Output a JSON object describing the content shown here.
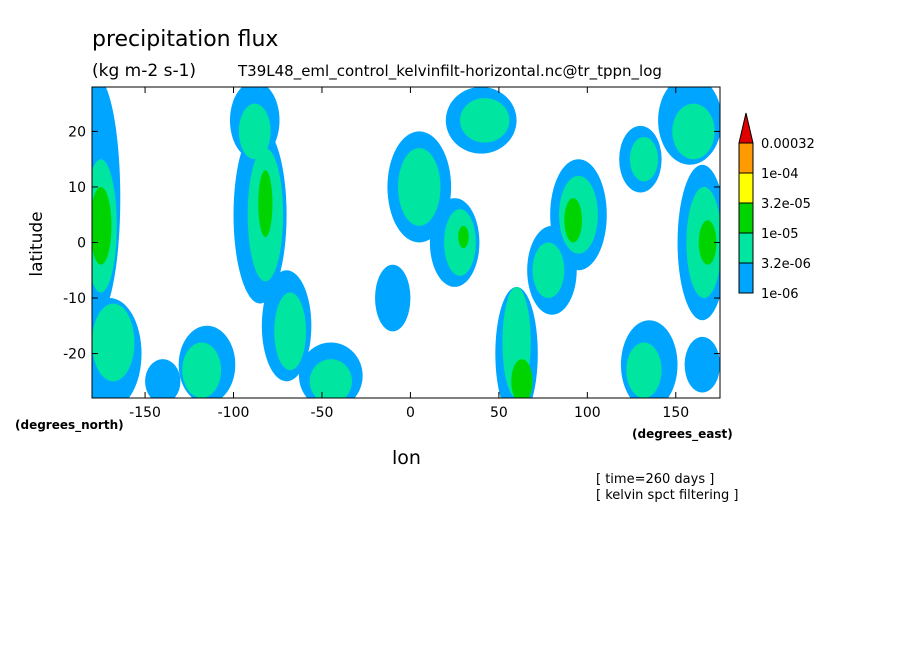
{
  "chart_data": {
    "type": "heatmap",
    "title": "precipitation flux",
    "units": "(kg m-2 s-1)",
    "source": "T39L48_eml_control_kelvinfilt-horizontal.nc@tr_tppn_log",
    "xlabel": "lon",
    "ylabel": "latitude",
    "x_units": "(degrees_east)",
    "y_units": "(degrees_north)",
    "xlim": [
      -180,
      175
    ],
    "ylim": [
      -28,
      28
    ],
    "x_ticks": [
      -150,
      -100,
      -50,
      0,
      50,
      100,
      150
    ],
    "y_ticks": [
      -20,
      -10,
      0,
      10,
      20
    ],
    "x_tick_labels": [
      "-150",
      "-100",
      "-50",
      "0",
      "50",
      "100",
      "150"
    ],
    "y_tick_labels": [
      "-20",
      "-10",
      "0",
      "10",
      "20"
    ],
    "colorbar": {
      "labels": [
        "0.00032",
        "1e-04",
        "3.2e-05",
        "1e-05",
        "3.2e-06",
        "1e-06"
      ],
      "colors": [
        "#00a5ff",
        "#00e5a0",
        "#00d400",
        "#ffff00",
        "#ff9a00",
        "#e00000"
      ]
    },
    "notes": [
      "[ time=260 days ]",
      "[ kelvin spct filtering ]"
    ],
    "fields": [
      {
        "level": 1,
        "regions": [
          {
            "cx": -178,
            "cy": 8,
            "rx": 14,
            "ry": 22
          },
          {
            "cx": -170,
            "cy": -20,
            "rx": 18,
            "ry": 10
          },
          {
            "cx": -140,
            "cy": -25,
            "rx": 10,
            "ry": 4
          },
          {
            "cx": -115,
            "cy": -22,
            "rx": 16,
            "ry": 7
          },
          {
            "cx": -88,
            "cy": 22,
            "rx": 14,
            "ry": 7
          },
          {
            "cx": -85,
            "cy": 5,
            "rx": 15,
            "ry": 16
          },
          {
            "cx": -70,
            "cy": -15,
            "rx": 14,
            "ry": 10
          },
          {
            "cx": -45,
            "cy": -24,
            "rx": 18,
            "ry": 6
          },
          {
            "cx": -10,
            "cy": -10,
            "rx": 10,
            "ry": 6
          },
          {
            "cx": 5,
            "cy": 10,
            "rx": 18,
            "ry": 10
          },
          {
            "cx": 25,
            "cy": 0,
            "rx": 14,
            "ry": 8
          },
          {
            "cx": 40,
            "cy": 22,
            "rx": 20,
            "ry": 6
          },
          {
            "cx": 60,
            "cy": -20,
            "rx": 12,
            "ry": 12
          },
          {
            "cx": 80,
            "cy": -5,
            "rx": 14,
            "ry": 8
          },
          {
            "cx": 95,
            "cy": 5,
            "rx": 16,
            "ry": 10
          },
          {
            "cx": 135,
            "cy": -22,
            "rx": 16,
            "ry": 8
          },
          {
            "cx": 130,
            "cy": 15,
            "rx": 12,
            "ry": 6
          },
          {
            "cx": 158,
            "cy": 22,
            "rx": 18,
            "ry": 8
          },
          {
            "cx": 165,
            "cy": 0,
            "rx": 14,
            "ry": 14
          },
          {
            "cx": 165,
            "cy": -22,
            "rx": 10,
            "ry": 5
          }
        ]
      },
      {
        "level": 2,
        "regions": [
          {
            "cx": -175,
            "cy": 3,
            "rx": 9,
            "ry": 12
          },
          {
            "cx": -168,
            "cy": -18,
            "rx": 12,
            "ry": 7
          },
          {
            "cx": -118,
            "cy": -23,
            "rx": 11,
            "ry": 5
          },
          {
            "cx": -88,
            "cy": 20,
            "rx": 9,
            "ry": 5
          },
          {
            "cx": -82,
            "cy": 5,
            "rx": 10,
            "ry": 12
          },
          {
            "cx": -68,
            "cy": -16,
            "rx": 9,
            "ry": 7
          },
          {
            "cx": -45,
            "cy": -25,
            "rx": 12,
            "ry": 4
          },
          {
            "cx": 5,
            "cy": 10,
            "rx": 12,
            "ry": 7
          },
          {
            "cx": 28,
            "cy": 0,
            "rx": 9,
            "ry": 6
          },
          {
            "cx": 42,
            "cy": 22,
            "rx": 14,
            "ry": 4
          },
          {
            "cx": 60,
            "cy": -18,
            "rx": 8,
            "ry": 10
          },
          {
            "cx": 78,
            "cy": -5,
            "rx": 9,
            "ry": 5
          },
          {
            "cx": 95,
            "cy": 5,
            "rx": 11,
            "ry": 7
          },
          {
            "cx": 132,
            "cy": -23,
            "rx": 10,
            "ry": 5
          },
          {
            "cx": 132,
            "cy": 15,
            "rx": 8,
            "ry": 4
          },
          {
            "cx": 160,
            "cy": 20,
            "rx": 12,
            "ry": 5
          },
          {
            "cx": 166,
            "cy": 0,
            "rx": 10,
            "ry": 10
          }
        ]
      },
      {
        "level": 3,
        "regions": [
          {
            "cx": -175,
            "cy": 3,
            "rx": 6,
            "ry": 7
          },
          {
            "cx": -82,
            "cy": 7,
            "rx": 4,
            "ry": 6
          },
          {
            "cx": 30,
            "cy": 1,
            "rx": 3,
            "ry": 2
          },
          {
            "cx": 63,
            "cy": -25,
            "rx": 6,
            "ry": 4
          },
          {
            "cx": 92,
            "cy": 4,
            "rx": 5,
            "ry": 4
          },
          {
            "cx": 168,
            "cy": 0,
            "rx": 5,
            "ry": 4
          }
        ]
      }
    ]
  }
}
